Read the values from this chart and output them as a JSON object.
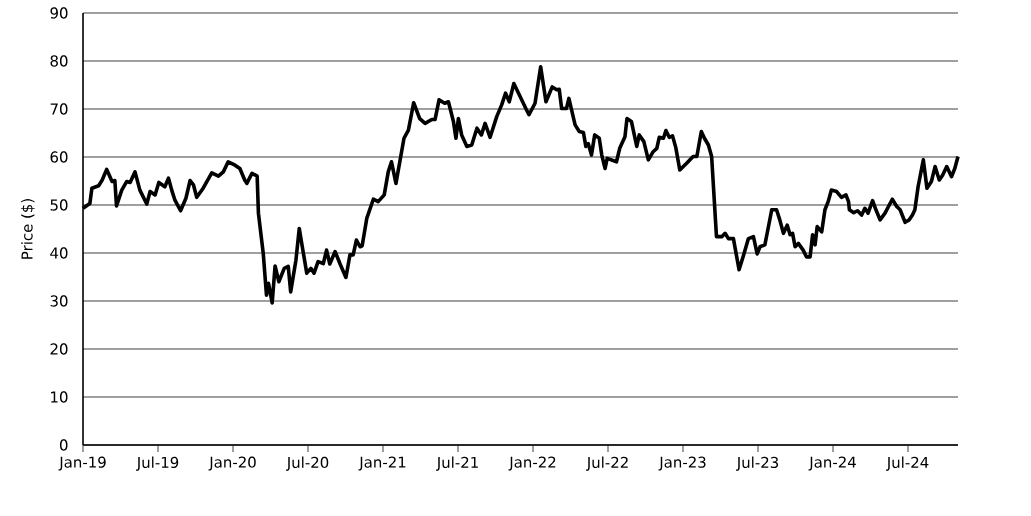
{
  "chart_data": {
    "type": "line",
    "ylabel": "Price ($)",
    "color": "#000000",
    "line_style": "solid",
    "grid": "y",
    "xlim": [
      "2019-01",
      "2024-11"
    ],
    "xticks": [
      {
        "value": "2019-01",
        "label": "Jan-19"
      },
      {
        "value": "2019-07",
        "label": "Jul-19"
      },
      {
        "value": "2020-01",
        "label": "Jan-20"
      },
      {
        "value": "2020-07",
        "label": "Jul-20"
      },
      {
        "value": "2021-01",
        "label": "Jan-21"
      },
      {
        "value": "2021-07",
        "label": "Jul-21"
      },
      {
        "value": "2022-01",
        "label": "Jan-22"
      },
      {
        "value": "2022-07",
        "label": "Jul-22"
      },
      {
        "value": "2023-01",
        "label": "Jan-23"
      },
      {
        "value": "2023-07",
        "label": "Jul-23"
      },
      {
        "value": "2024-01",
        "label": "Jan-24"
      },
      {
        "value": "2024-07",
        "label": "Jul-24"
      }
    ],
    "ylim": [
      0,
      90
    ],
    "yticks": [
      0,
      10,
      20,
      30,
      40,
      50,
      60,
      70,
      80,
      90
    ],
    "x": [
      "2019-01-01",
      "2019-01-18",
      "2019-01-23",
      "2019-02-08",
      "2019-02-16",
      "2019-02-26",
      "2019-03-02",
      "2019-03-11",
      "2019-03-18",
      "2019-03-22",
      "2019-04-04",
      "2019-04-16",
      "2019-04-24",
      "2019-05-06",
      "2019-05-18",
      "2019-06-04",
      "2019-06-12",
      "2019-06-24",
      "2019-07-03",
      "2019-07-18",
      "2019-07-27",
      "2019-08-04",
      "2019-08-12",
      "2019-08-26",
      "2019-09-08",
      "2019-09-18",
      "2019-09-26",
      "2019-10-04",
      "2019-10-20",
      "2019-11-10",
      "2019-11-26",
      "2019-12-08",
      "2019-12-20",
      "2020-01-06",
      "2020-01-18",
      "2020-01-30",
      "2020-02-04",
      "2020-02-16",
      "2020-02-28",
      "2020-03-02",
      "2020-03-14",
      "2020-03-22",
      "2020-03-27",
      "2020-04-05",
      "2020-04-12",
      "2020-04-21",
      "2020-05-04",
      "2020-05-14",
      "2020-05-20",
      "2020-06-02",
      "2020-06-10",
      "2020-06-20",
      "2020-06-28",
      "2020-07-08",
      "2020-07-16",
      "2020-07-26",
      "2020-08-08",
      "2020-08-16",
      "2020-08-24",
      "2020-09-06",
      "2020-09-18",
      "2020-10-02",
      "2020-10-12",
      "2020-10-20",
      "2020-10-28",
      "2020-11-06",
      "2020-11-11",
      "2020-11-22",
      "2020-12-08",
      "2020-12-20",
      "2021-01-04",
      "2021-01-14",
      "2021-01-22",
      "2021-02-02",
      "2021-02-20",
      "2021-03-02",
      "2021-03-15",
      "2021-03-30",
      "2021-04-12",
      "2021-04-28",
      "2021-05-06",
      "2021-05-16",
      "2021-05-30",
      "2021-06-08",
      "2021-06-20",
      "2021-06-26",
      "2021-07-02",
      "2021-07-10",
      "2021-07-23",
      "2021-08-04",
      "2021-08-17",
      "2021-08-28",
      "2021-09-06",
      "2021-09-18",
      "2021-10-04",
      "2021-10-16",
      "2021-10-26",
      "2021-11-04",
      "2021-11-15",
      "2021-11-30",
      "2021-12-16",
      "2021-12-22",
      "2022-01-06",
      "2022-01-20",
      "2022-02-02",
      "2022-02-16",
      "2022-02-26",
      "2022-03-04",
      "2022-03-10",
      "2022-03-22",
      "2022-03-28",
      "2022-04-12",
      "2022-04-22",
      "2022-05-02",
      "2022-05-08",
      "2022-05-14",
      "2022-05-22",
      "2022-05-30",
      "2022-06-10",
      "2022-06-16",
      "2022-06-24",
      "2022-06-29",
      "2022-07-22",
      "2022-07-30",
      "2022-08-12",
      "2022-08-17",
      "2022-08-28",
      "2022-09-10",
      "2022-09-16",
      "2022-09-27",
      "2022-10-08",
      "2022-10-20",
      "2022-10-29",
      "2022-11-04",
      "2022-11-14",
      "2022-11-20",
      "2022-11-28",
      "2022-12-06",
      "2022-12-14",
      "2022-12-24",
      "2023-01-10",
      "2023-01-26",
      "2023-02-04",
      "2023-02-14",
      "2023-02-21",
      "2023-03-02",
      "2023-03-10",
      "2023-03-22",
      "2023-04-04",
      "2023-04-12",
      "2023-04-20",
      "2023-05-02",
      "2023-05-16",
      "2023-05-26",
      "2023-06-08",
      "2023-06-20",
      "2023-06-29",
      "2023-07-06",
      "2023-07-18",
      "2023-07-26",
      "2023-08-04",
      "2023-08-16",
      "2023-08-24",
      "2023-09-02",
      "2023-09-11",
      "2023-09-18",
      "2023-09-24",
      "2023-09-30",
      "2023-10-08",
      "2023-10-20",
      "2023-10-28",
      "2023-11-06",
      "2023-11-12",
      "2023-11-18",
      "2023-11-23",
      "2023-12-04",
      "2023-12-12",
      "2023-12-20",
      "2023-12-28",
      "2024-01-10",
      "2024-01-22",
      "2024-02-02",
      "2024-02-08",
      "2024-02-10",
      "2024-02-20",
      "2024-02-29",
      "2024-03-10",
      "2024-03-18",
      "2024-03-26",
      "2024-04-06",
      "2024-04-14",
      "2024-04-24",
      "2024-05-06",
      "2024-05-24",
      "2024-06-04",
      "2024-06-12",
      "2024-06-24",
      "2024-07-04",
      "2024-07-12",
      "2024-07-18",
      "2024-07-26",
      "2024-08-08",
      "2024-08-17",
      "2024-08-28",
      "2024-09-06",
      "2024-09-16",
      "2024-09-24",
      "2024-10-04",
      "2024-10-16",
      "2024-10-24",
      "2024-11-01"
    ],
    "values": [
      49.3,
      50.3,
      53.5,
      54.0,
      55.2,
      57.4,
      56.6,
      54.9,
      55.1,
      49.8,
      53.1,
      54.9,
      54.7,
      56.9,
      53.1,
      50.2,
      52.8,
      52.1,
      54.7,
      53.8,
      55.6,
      53.1,
      51.0,
      48.8,
      51.4,
      55.1,
      54.2,
      51.6,
      53.5,
      56.7,
      56.0,
      56.9,
      59.0,
      58.3,
      57.6,
      55.2,
      54.5,
      56.6,
      56.0,
      48.3,
      39.9,
      31.2,
      33.7,
      29.6,
      37.3,
      34.0,
      36.8,
      37.2,
      31.9,
      38.5,
      45.1,
      39.9,
      35.8,
      36.8,
      35.8,
      38.2,
      37.8,
      40.6,
      37.7,
      40.3,
      37.7,
      34.9,
      39.6,
      39.6,
      42.7,
      41.3,
      41.5,
      47.2,
      51.2,
      50.7,
      52.1,
      56.9,
      59.0,
      54.5,
      63.9,
      65.6,
      71.3,
      68.0,
      67.0,
      67.8,
      67.8,
      71.9,
      71.2,
      71.5,
      67.4,
      63.9,
      68.0,
      64.6,
      62.2,
      62.5,
      66.0,
      64.6,
      67.0,
      64.1,
      68.4,
      70.8,
      73.3,
      71.5,
      75.3,
      72.6,
      69.8,
      68.8,
      71.2,
      78.8,
      71.5,
      74.6,
      74.0,
      74.1,
      70.1,
      70.1,
      72.2,
      66.7,
      65.3,
      65.1,
      62.2,
      62.8,
      60.4,
      64.6,
      63.9,
      60.4,
      57.6,
      59.7,
      59.0,
      61.8,
      64.2,
      68.0,
      67.4,
      62.2,
      64.6,
      63.2,
      59.4,
      61.1,
      61.8,
      64.1,
      63.9,
      65.5,
      64.1,
      64.4,
      62.0,
      57.3,
      58.7,
      60.1,
      60.1,
      65.3,
      63.9,
      62.5,
      60.1,
      43.4,
      43.4,
      44.1,
      43.0,
      43.0,
      36.5,
      39.2,
      43.0,
      43.4,
      39.8,
      41.3,
      41.7,
      45.1,
      49.0,
      49.0,
      46.9,
      44.1,
      45.8,
      43.8,
      44.1,
      41.3,
      42.0,
      40.6,
      39.2,
      39.2,
      43.8,
      41.7,
      45.5,
      44.4,
      49.0,
      50.7,
      53.1,
      52.8,
      51.6,
      52.1,
      50.7,
      49.0,
      48.4,
      48.8,
      47.9,
      49.3,
      48.3,
      50.9,
      49.0,
      46.9,
      48.3,
      51.2,
      49.7,
      49.0,
      46.4,
      46.9,
      47.9,
      49.0,
      53.8,
      59.4,
      53.5,
      54.9,
      58.0,
      55.2,
      56.2,
      58.0,
      55.9,
      57.6,
      60.1
    ]
  }
}
